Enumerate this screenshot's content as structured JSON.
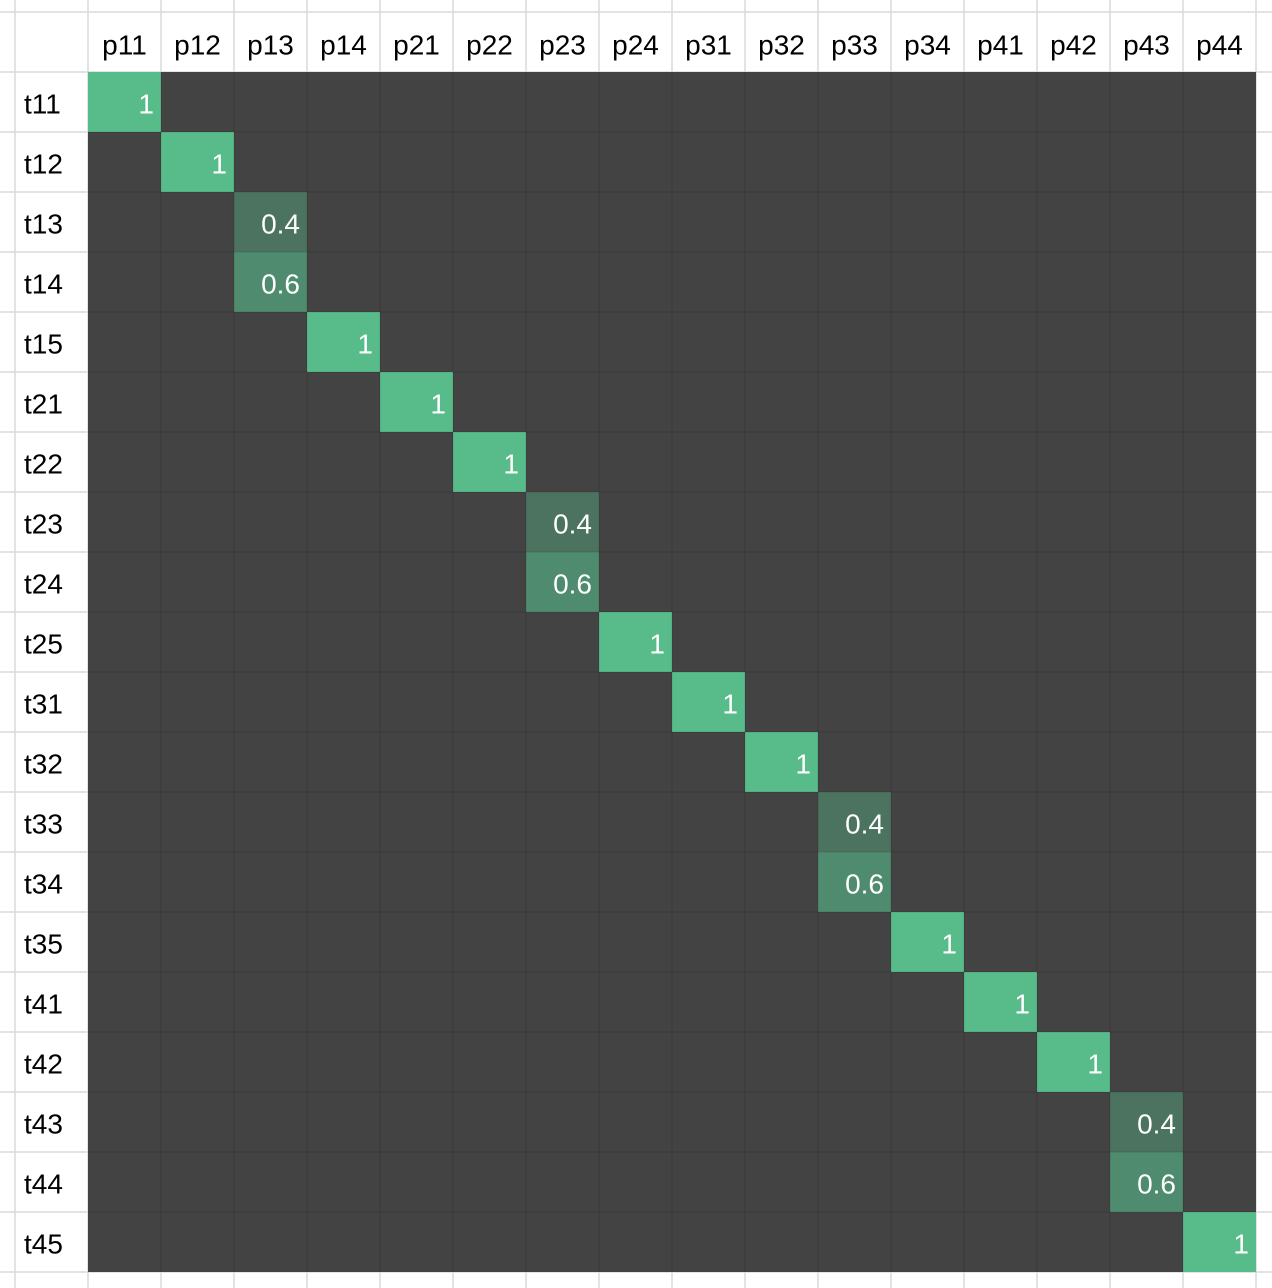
{
  "table": {
    "columns": [
      "p11",
      "p12",
      "p13",
      "p14",
      "p21",
      "p22",
      "p23",
      "p24",
      "p31",
      "p32",
      "p33",
      "p34",
      "p41",
      "p42",
      "p43",
      "p44"
    ],
    "rows": [
      {
        "label": "t11",
        "cells": [
          1,
          null,
          null,
          null,
          null,
          null,
          null,
          null,
          null,
          null,
          null,
          null,
          null,
          null,
          null,
          null
        ]
      },
      {
        "label": "t12",
        "cells": [
          null,
          1,
          null,
          null,
          null,
          null,
          null,
          null,
          null,
          null,
          null,
          null,
          null,
          null,
          null,
          null
        ]
      },
      {
        "label": "t13",
        "cells": [
          null,
          null,
          0.4,
          null,
          null,
          null,
          null,
          null,
          null,
          null,
          null,
          null,
          null,
          null,
          null,
          null
        ]
      },
      {
        "label": "t14",
        "cells": [
          null,
          null,
          0.6,
          null,
          null,
          null,
          null,
          null,
          null,
          null,
          null,
          null,
          null,
          null,
          null,
          null
        ]
      },
      {
        "label": "t15",
        "cells": [
          null,
          null,
          null,
          1,
          null,
          null,
          null,
          null,
          null,
          null,
          null,
          null,
          null,
          null,
          null,
          null
        ]
      },
      {
        "label": "t21",
        "cells": [
          null,
          null,
          null,
          null,
          1,
          null,
          null,
          null,
          null,
          null,
          null,
          null,
          null,
          null,
          null,
          null
        ]
      },
      {
        "label": "t22",
        "cells": [
          null,
          null,
          null,
          null,
          null,
          1,
          null,
          null,
          null,
          null,
          null,
          null,
          null,
          null,
          null,
          null
        ]
      },
      {
        "label": "t23",
        "cells": [
          null,
          null,
          null,
          null,
          null,
          null,
          0.4,
          null,
          null,
          null,
          null,
          null,
          null,
          null,
          null,
          null
        ]
      },
      {
        "label": "t24",
        "cells": [
          null,
          null,
          null,
          null,
          null,
          null,
          0.6,
          null,
          null,
          null,
          null,
          null,
          null,
          null,
          null,
          null
        ]
      },
      {
        "label": "t25",
        "cells": [
          null,
          null,
          null,
          null,
          null,
          null,
          null,
          1,
          null,
          null,
          null,
          null,
          null,
          null,
          null,
          null
        ]
      },
      {
        "label": "t31",
        "cells": [
          null,
          null,
          null,
          null,
          null,
          null,
          null,
          null,
          1,
          null,
          null,
          null,
          null,
          null,
          null,
          null
        ]
      },
      {
        "label": "t32",
        "cells": [
          null,
          null,
          null,
          null,
          null,
          null,
          null,
          null,
          null,
          1,
          null,
          null,
          null,
          null,
          null,
          null
        ]
      },
      {
        "label": "t33",
        "cells": [
          null,
          null,
          null,
          null,
          null,
          null,
          null,
          null,
          null,
          null,
          0.4,
          null,
          null,
          null,
          null,
          null
        ]
      },
      {
        "label": "t34",
        "cells": [
          null,
          null,
          null,
          null,
          null,
          null,
          null,
          null,
          null,
          null,
          0.6,
          null,
          null,
          null,
          null,
          null
        ]
      },
      {
        "label": "t35",
        "cells": [
          null,
          null,
          null,
          null,
          null,
          null,
          null,
          null,
          null,
          null,
          null,
          1,
          null,
          null,
          null,
          null
        ]
      },
      {
        "label": "t41",
        "cells": [
          null,
          null,
          null,
          null,
          null,
          null,
          null,
          null,
          null,
          null,
          null,
          null,
          1,
          null,
          null,
          null
        ]
      },
      {
        "label": "t42",
        "cells": [
          null,
          null,
          null,
          null,
          null,
          null,
          null,
          null,
          null,
          null,
          null,
          null,
          null,
          1,
          null,
          null
        ]
      },
      {
        "label": "t43",
        "cells": [
          null,
          null,
          null,
          null,
          null,
          null,
          null,
          null,
          null,
          null,
          null,
          null,
          null,
          null,
          0.4,
          null
        ]
      },
      {
        "label": "t44",
        "cells": [
          null,
          null,
          null,
          null,
          null,
          null,
          null,
          null,
          null,
          null,
          null,
          null,
          null,
          null,
          0.6,
          null
        ]
      },
      {
        "label": "t45",
        "cells": [
          null,
          null,
          null,
          null,
          null,
          null,
          null,
          null,
          null,
          null,
          null,
          null,
          null,
          null,
          null,
          1
        ]
      }
    ]
  }
}
